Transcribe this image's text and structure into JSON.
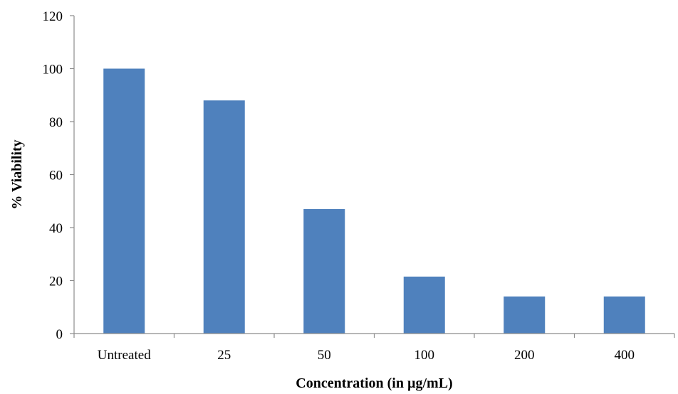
{
  "chart_data": {
    "type": "bar",
    "title": "",
    "xlabel": "Concentration (in µg/mL)",
    "ylabel": "% Viability",
    "categories": [
      "Untreated",
      "25",
      "50",
      "100",
      "200",
      "400"
    ],
    "series": [
      {
        "values": [
          100,
          88,
          47,
          21.5,
          14,
          14
        ]
      }
    ],
    "ylim": [
      0,
      120
    ],
    "yticks": [
      "0",
      "20",
      "40",
      "60",
      "80",
      "100",
      "120"
    ],
    "bar_color": "#4f81bd",
    "axis_color": "#8c8c8c",
    "grid": false,
    "legend": "none"
  }
}
